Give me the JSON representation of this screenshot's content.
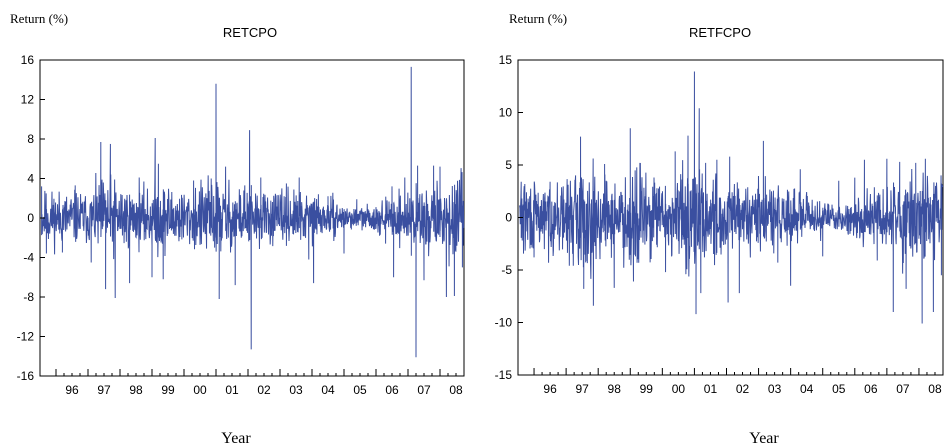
{
  "chart_data": [
    {
      "type": "line",
      "title": "RETCPO",
      "ylabel": "Return (%)",
      "xlabel": "Year",
      "ylim": [
        -16,
        16
      ],
      "yticks": [
        16,
        12,
        8,
        4,
        0,
        -4,
        -8,
        -12,
        -16
      ],
      "xlim": [
        1995.5,
        2008.75
      ],
      "xticks": [
        "96",
        "97",
        "98",
        "99",
        "00",
        "01",
        "02",
        "03",
        "04",
        "05",
        "06",
        "07",
        "08"
      ],
      "grid": false,
      "series_color": "#3a4fa0",
      "series": [
        {
          "x": [
            1995.55,
            1995.7,
            1996.2,
            1996.6,
            1997.1,
            1997.4,
            1997.55,
            1997.7,
            1997.85,
            1998.3,
            1998.6,
            1999.0,
            1999.1,
            1999.2,
            1999.35,
            2000.3,
            2000.85,
            2001.0,
            2001.1,
            2001.3,
            2001.6,
            2001.9,
            2002.05,
            2002.1,
            2002.4,
            2003.2,
            2003.6,
            2003.9,
            2004.05,
            2004.2,
            2004.5,
            2005.0,
            2005.4,
            2006.0,
            2006.3,
            2006.5,
            2006.55,
            2006.9,
            2007.1,
            2007.25,
            2007.3,
            2007.5,
            2007.8,
            2008.0,
            2008.2,
            2008.45,
            2008.7
          ],
          "y": [
            3.2,
            -3.6,
            -3.5,
            3.3,
            -4.5,
            7.7,
            -7.2,
            7.5,
            -8.1,
            -6.6,
            4.1,
            -6.0,
            8.1,
            5.5,
            -6.2,
            3.8,
            4.0,
            13.6,
            -8.2,
            5.2,
            -6.8,
            3.3,
            8.9,
            -13.3,
            4.1,
            3.5,
            4.1,
            -4.2,
            -6.6,
            2.4,
            2.2,
            -3.6,
            1.9,
            1.1,
            -2.6,
            3.2,
            -6.0,
            4.1,
            15.3,
            -14.1,
            5.3,
            -6.3,
            5.3,
            5.2,
            -8.0,
            -7.9,
            -5.0
          ]
        }
      ]
    },
    {
      "type": "line",
      "title": "RETFCPO",
      "ylabel": "Return (%)",
      "xlabel": "Year",
      "ylim": [
        -15,
        15
      ],
      "yticks": [
        15,
        10,
        5,
        0,
        -5,
        -10,
        -15
      ],
      "xlim": [
        1995.5,
        2008.75
      ],
      "xticks": [
        "96",
        "97",
        "98",
        "99",
        "00",
        "01",
        "02",
        "03",
        "04",
        "05",
        "06",
        "07",
        "08"
      ],
      "grid": false,
      "series_color": "#3a4fa0",
      "series": [
        {
          "x": [
            1995.6,
            1996.0,
            1996.5,
            1997.1,
            1997.45,
            1997.55,
            1997.85,
            1998.2,
            1998.5,
            1999.0,
            1999.1,
            1999.3,
            2000.1,
            2000.4,
            2000.8,
            2001.0,
            2001.05,
            2001.15,
            2001.2,
            2001.35,
            2001.7,
            2002.05,
            2002.1,
            2002.4,
            2003.15,
            2003.6,
            2004.0,
            2004.3,
            2005.0,
            2005.5,
            2006.0,
            2006.3,
            2006.7,
            2007.0,
            2007.2,
            2007.4,
            2007.6,
            2007.9,
            2008.1,
            2008.2,
            2008.45,
            2008.7
          ],
          "y": [
            3.4,
            -3.8,
            3.4,
            -4.6,
            7.7,
            -6.8,
            -8.4,
            5.1,
            -6.7,
            8.5,
            -6.1,
            5.2,
            -5.2,
            6.3,
            7.8,
            13.9,
            -9.2,
            10.4,
            -7.2,
            5.2,
            5.5,
            -8.1,
            5.8,
            -7.2,
            7.3,
            -4.3,
            -6.5,
            4.6,
            -3.7,
            3.5,
            3.8,
            5.5,
            -4.1,
            5.6,
            -9.0,
            5.3,
            -6.8,
            5.2,
            -10.1,
            5.6,
            -9.0,
            -5.5
          ]
        }
      ]
    }
  ]
}
